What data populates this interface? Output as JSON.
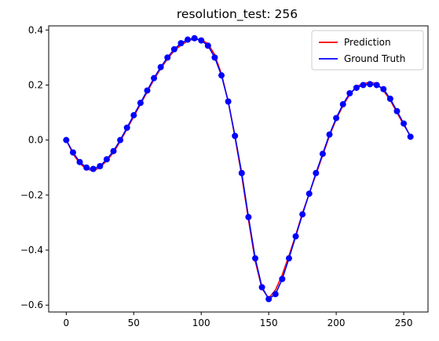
{
  "chart_data": {
    "type": "line",
    "title": "resolution_test: 256",
    "xlabel": "",
    "ylabel": "",
    "xlim": [
      -13,
      268
    ],
    "ylim": [
      -0.625,
      0.415
    ],
    "grid": false,
    "legend_placement": "top-right",
    "x_ticks": [
      0,
      50,
      100,
      150,
      200,
      250
    ],
    "y_ticks": [
      -0.6,
      -0.4,
      -0.2,
      0.0,
      0.2,
      0.4
    ],
    "x_tick_labels": [
      "0",
      "50",
      "100",
      "150",
      "200",
      "250"
    ],
    "y_tick_labels": [
      "−0.6",
      "−0.4",
      "−0.2",
      "0.0",
      "0.2",
      "0.4"
    ],
    "series": [
      {
        "name": "Prediction",
        "color": "#ff0000",
        "style": "line",
        "x": [
          0,
          5,
          10,
          15,
          20,
          25,
          30,
          35,
          40,
          45,
          50,
          55,
          60,
          65,
          70,
          75,
          80,
          85,
          90,
          95,
          100,
          105,
          110,
          115,
          120,
          125,
          130,
          135,
          140,
          145,
          150,
          155,
          160,
          165,
          170,
          175,
          180,
          185,
          190,
          195,
          200,
          205,
          210,
          215,
          220,
          225,
          230,
          235,
          240,
          245,
          250,
          255
        ],
        "y": [
          0.0,
          -0.05,
          -0.085,
          -0.105,
          -0.112,
          -0.1,
          -0.075,
          -0.045,
          -0.005,
          0.04,
          0.085,
          0.13,
          0.175,
          0.22,
          0.26,
          0.295,
          0.325,
          0.345,
          0.36,
          0.368,
          0.365,
          0.35,
          0.31,
          0.24,
          0.14,
          0.01,
          -0.13,
          -0.29,
          -0.44,
          -0.54,
          -0.575,
          -0.545,
          -0.49,
          -0.42,
          -0.345,
          -0.265,
          -0.195,
          -0.125,
          -0.055,
          0.015,
          0.075,
          0.125,
          0.165,
          0.195,
          0.205,
          0.21,
          0.205,
          0.18,
          0.145,
          0.1,
          0.055,
          0.015
        ]
      },
      {
        "name": "Ground Truth",
        "color": "#0000ff",
        "style": "line+markers",
        "x": [
          0,
          5,
          10,
          15,
          20,
          25,
          30,
          35,
          40,
          45,
          50,
          55,
          60,
          65,
          70,
          75,
          80,
          85,
          90,
          95,
          100,
          105,
          110,
          115,
          120,
          125,
          130,
          135,
          140,
          145,
          150,
          155,
          160,
          165,
          170,
          175,
          180,
          185,
          190,
          195,
          200,
          205,
          210,
          215,
          220,
          225,
          230,
          235,
          240,
          245,
          250,
          255
        ],
        "y": [
          0.0,
          -0.045,
          -0.08,
          -0.1,
          -0.105,
          -0.095,
          -0.07,
          -0.04,
          0.0,
          0.045,
          0.09,
          0.135,
          0.18,
          0.225,
          0.265,
          0.3,
          0.33,
          0.352,
          0.365,
          0.37,
          0.362,
          0.343,
          0.3,
          0.235,
          0.14,
          0.015,
          -0.12,
          -0.28,
          -0.43,
          -0.535,
          -0.578,
          -0.56,
          -0.505,
          -0.43,
          -0.35,
          -0.27,
          -0.195,
          -0.12,
          -0.05,
          0.02,
          0.08,
          0.13,
          0.17,
          0.19,
          0.2,
          0.203,
          0.2,
          0.185,
          0.15,
          0.105,
          0.06,
          0.012
        ]
      }
    ]
  }
}
